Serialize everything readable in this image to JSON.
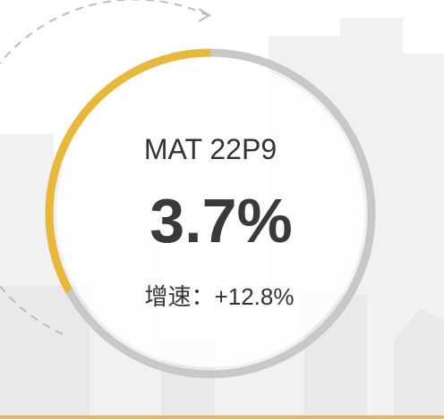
{
  "chart_data": {
    "type": "pie",
    "title": "MAT 22P9",
    "value": 3.7,
    "value_label": "3.7%",
    "growth_label": "增速：+12.8%",
    "share_displayed": 0.33,
    "colors": {
      "filled": "#E8B83A",
      "track": "#C8C8C8",
      "title_text": "#333333",
      "value_text": "#3A3A3A",
      "background_buildings": "#F0F0F0",
      "base_line": "#E6B85C",
      "dashed_arrow": "#BDBDBD"
    }
  }
}
